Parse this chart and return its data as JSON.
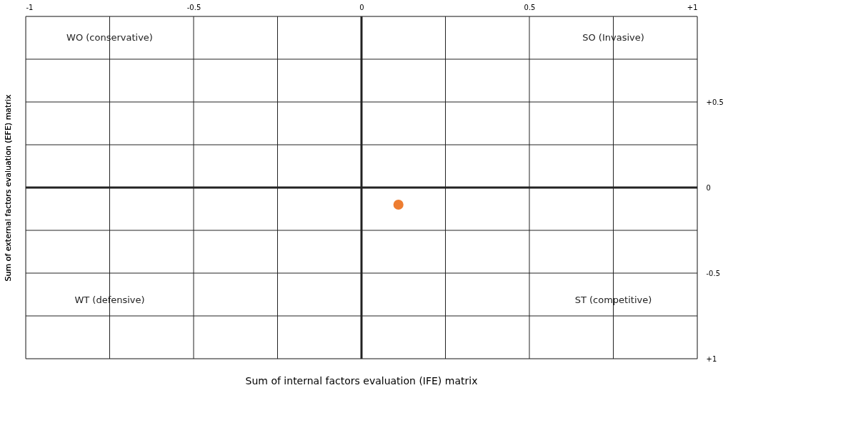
{
  "chart_data": {
    "type": "scatter",
    "xlabel": "Sum of internal factors evaluation (IFE) matrix",
    "ylabel": "Sum of external factors evaluation (EFE) matrix",
    "x": [
      0.11
    ],
    "series": [
      {
        "color": "#ed7d31",
        "values": [
          -0.1
        ]
      }
    ],
    "marker": "circle",
    "xlim": [
      -1,
      1
    ],
    "ylim": [
      -1,
      1
    ],
    "xticks": [
      -1,
      {
        "value": -0.75,
        "label": null
      },
      -0.5,
      {
        "value": -0.25,
        "label": null
      },
      0,
      {
        "value": 0.25,
        "label": null
      },
      0.5,
      {
        "value": 0.75,
        "label": null
      },
      {
        "value": 1,
        "label": "+1"
      }
    ],
    "yticks": [
      {
        "value": -1,
        "label": "+1"
      },
      {
        "value": -0.75,
        "label": null
      },
      -0.5,
      {
        "value": -0.25,
        "label": null
      },
      0,
      {
        "value": 0.25,
        "label": null
      },
      {
        "value": 0.5,
        "label": "+0.5"
      },
      {
        "value": 0.75,
        "label": null
      },
      {
        "value": 1,
        "label": null
      }
    ],
    "grid": true,
    "annotations": [
      "WO (conservative)",
      "SO (Invasive)",
      "WT (defensive)",
      "ST (competitive)"
    ]
  }
}
